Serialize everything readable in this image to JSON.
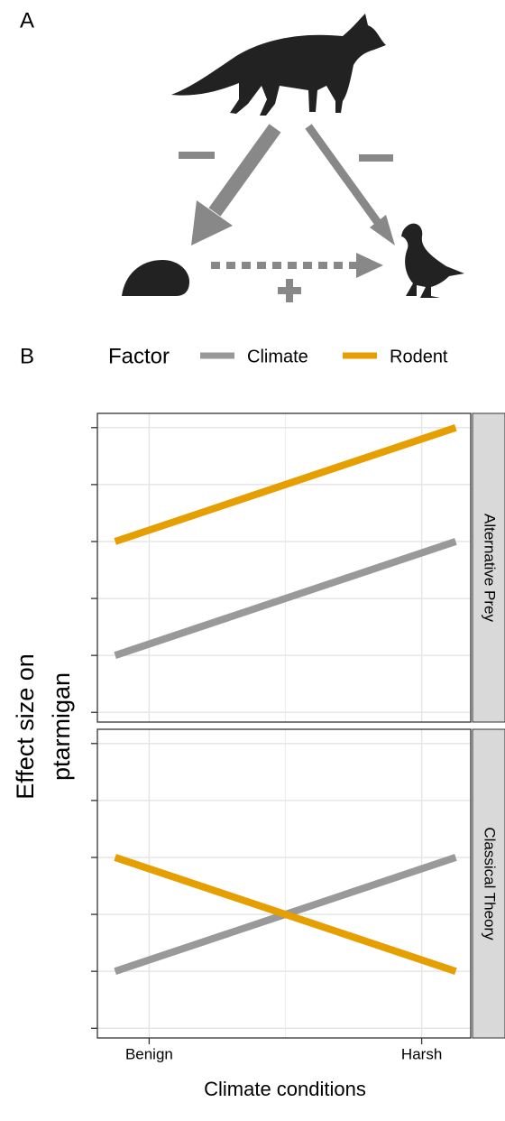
{
  "panel_a": {
    "label": "A"
  },
  "chart_data": {
    "type": "line",
    "panel_label": "B",
    "legend_title": "Factor",
    "x": [
      0.75,
      3.25
    ],
    "xlim": [
      0.62,
      3.36
    ],
    "xticks": [
      {
        "value": 1,
        "label": "Benign"
      },
      {
        "value": 3,
        "label": "Harsh"
      }
    ],
    "ylim": [
      -0.17,
      5.25
    ],
    "yticks": [
      0,
      1,
      2,
      3,
      4,
      5
    ],
    "show_ytick_labels": false,
    "grid": true,
    "xlabel": "Climate conditions",
    "ylabel": [
      "Effect size on",
      "ptarmigan"
    ],
    "facets": [
      {
        "label": "Alternative Prey",
        "series": [
          {
            "name": "Climate",
            "color": "#999999",
            "values": [
              1,
              3
            ]
          },
          {
            "name": "Rodent",
            "color": "#E69F00",
            "values": [
              3,
              5
            ]
          }
        ]
      },
      {
        "label": "Classical Theory",
        "series": [
          {
            "name": "Climate",
            "color": "#999999",
            "values": [
              1,
              3
            ]
          },
          {
            "name": "Rodent",
            "color": "#E69F00",
            "values": [
              3,
              1
            ]
          }
        ]
      }
    ]
  }
}
